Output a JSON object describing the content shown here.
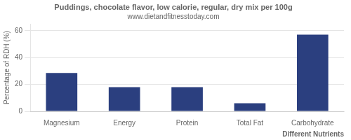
{
  "chart_data": {
    "type": "bar",
    "title": "Puddings, chocolate flavor, low calorie, regular, dry mix per 100g",
    "subtitle": "www.dietandfitnesstoday.com",
    "xlabel": "Different Nutrients",
    "ylabel": "Percentage of RDH (%)",
    "categories": [
      "Magnesium",
      "Energy",
      "Protein",
      "Total Fat",
      "Carbohydrate"
    ],
    "values": [
      28.5,
      18.0,
      18.0,
      6.0,
      57.0
    ],
    "color": "#2b3f7f",
    "ylim": [
      0,
      65
    ],
    "yticks": [
      0,
      20,
      40,
      60
    ],
    "grid": true
  }
}
